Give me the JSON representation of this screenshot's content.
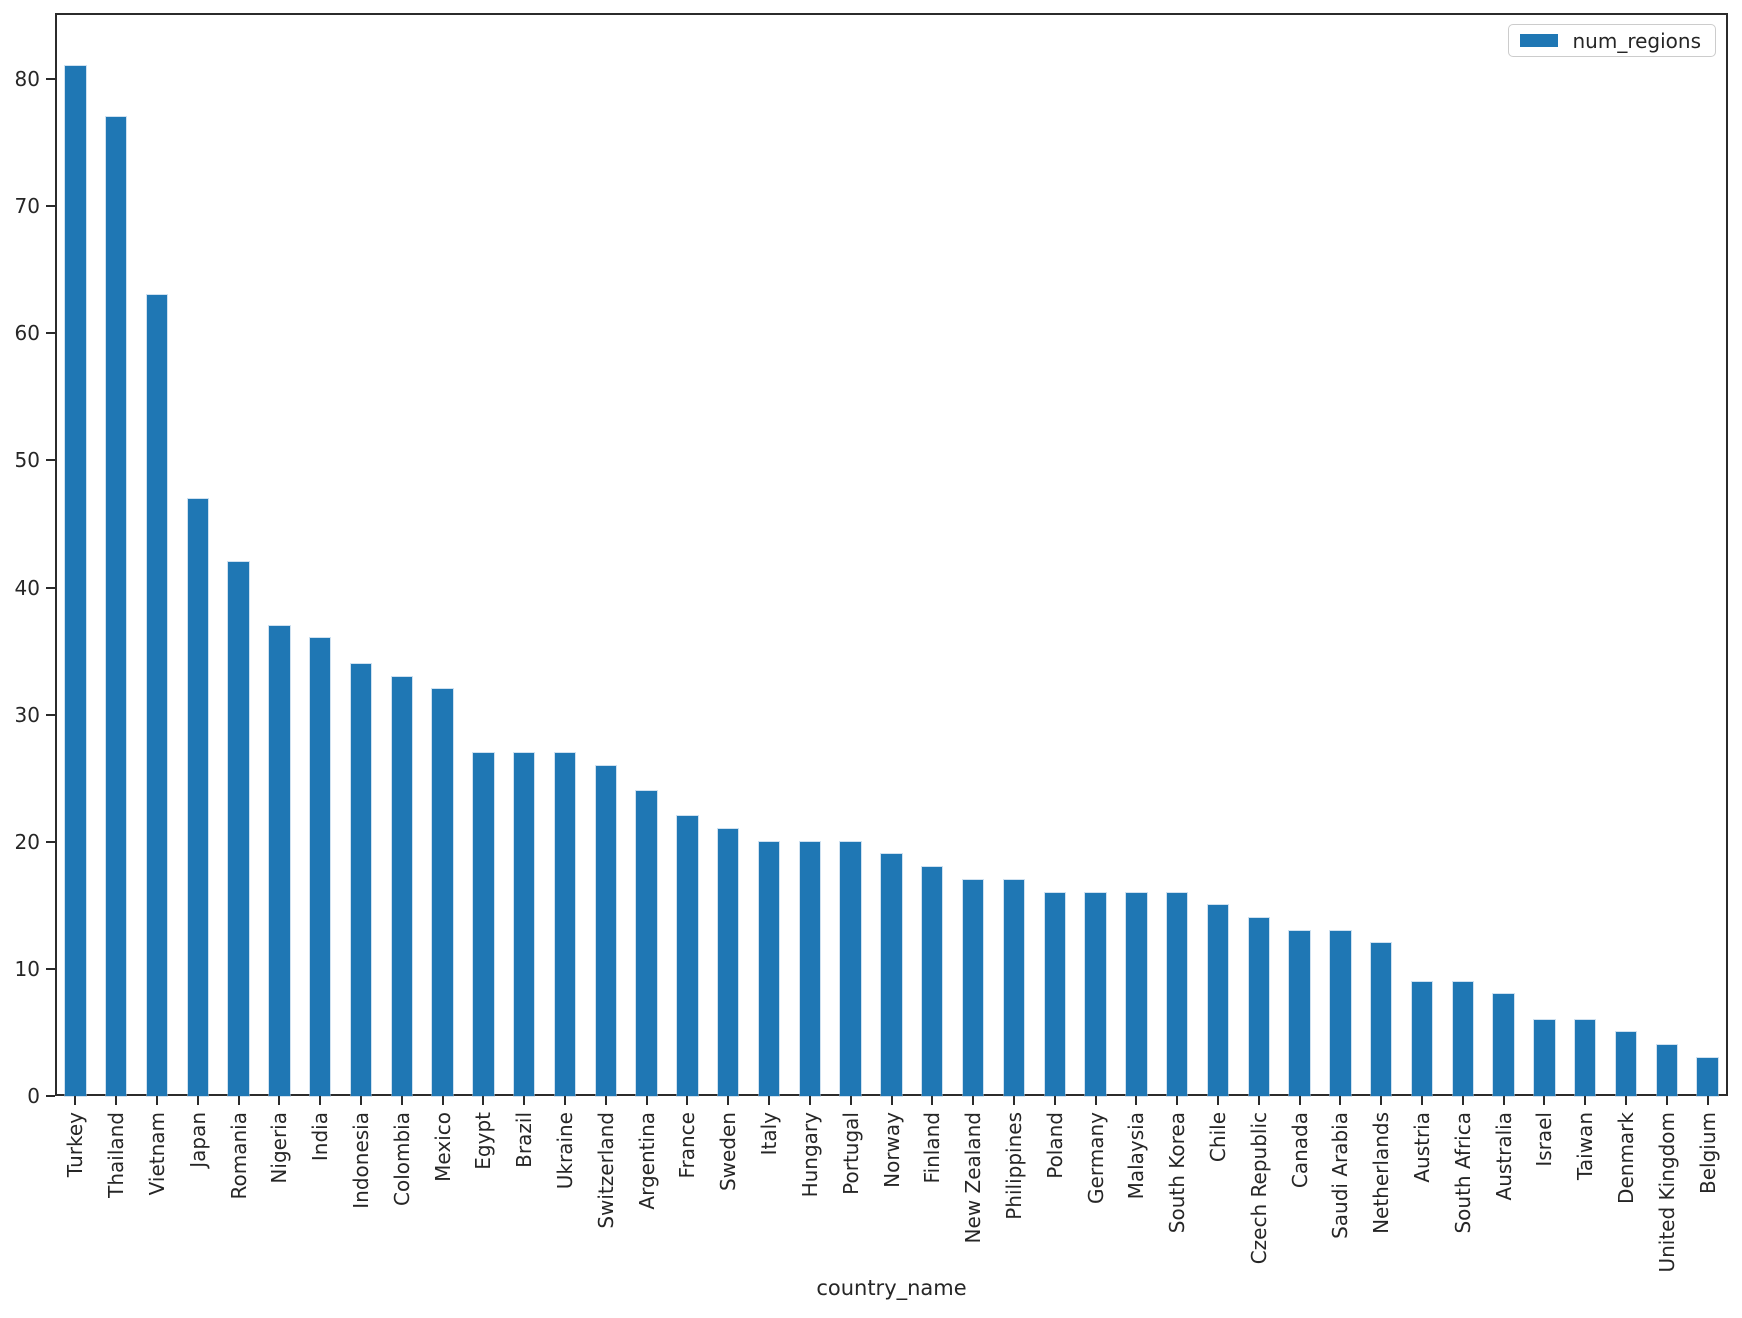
{
  "chart_data": {
    "type": "bar",
    "title": "",
    "xlabel": "country_name",
    "ylabel": "",
    "legend": {
      "label": "num_regions",
      "position": "upper right"
    },
    "bar_color": "#1f77b4",
    "axis_color": "#2b2b2b",
    "text_color": "#262626",
    "grid": false,
    "ylim": [
      0,
      85.2
    ],
    "yticks": [
      0,
      10,
      20,
      30,
      40,
      50,
      60,
      70,
      80
    ],
    "categories": [
      "Turkey",
      "Thailand",
      "Vietnam",
      "Japan",
      "Romania",
      "Nigeria",
      "India",
      "Indonesia",
      "Colombia",
      "Mexico",
      "Egypt",
      "Brazil",
      "Ukraine",
      "Switzerland",
      "Argentina",
      "France",
      "Sweden",
      "Italy",
      "Hungary",
      "Portugal",
      "Norway",
      "Finland",
      "New Zealand",
      "Philippines",
      "Poland",
      "Germany",
      "Malaysia",
      "South Korea",
      "Chile",
      "Czech Republic",
      "Canada",
      "Saudi Arabia",
      "Netherlands",
      "Austria",
      "South Africa",
      "Australia",
      "Israel",
      "Taiwan",
      "Denmark",
      "United Kingdom",
      "Belgium"
    ],
    "values": [
      81,
      77,
      63,
      47,
      42,
      37,
      36,
      34,
      33,
      32,
      27,
      27,
      27,
      26,
      24,
      22,
      21,
      20,
      20,
      20,
      19,
      18,
      17,
      17,
      16,
      16,
      16,
      16,
      15,
      14,
      13,
      13,
      12,
      9,
      9,
      8,
      6,
      6,
      5,
      4,
      3
    ]
  }
}
